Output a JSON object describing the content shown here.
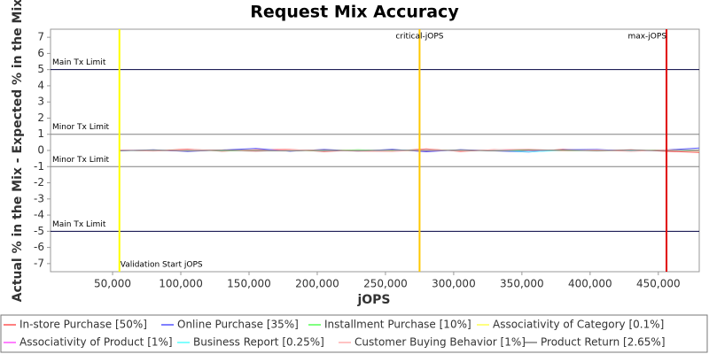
{
  "chart_data": {
    "type": "line",
    "title": "Request Mix Accuracy",
    "x_label": "jOPS",
    "y_label": "Actual % in the Mix - Expected % in the Mix",
    "x": [
      55000,
      80000,
      105000,
      130000,
      155000,
      180000,
      205000,
      230000,
      255000,
      280000,
      305000,
      330000,
      355000,
      380000,
      405000,
      430000,
      455000,
      480000
    ],
    "series": [
      {
        "name": "In-store Purchase [50%]",
        "color": "#ff5555",
        "values": [
          0.02,
          -0.03,
          0.08,
          -0.05,
          0.04,
          0.06,
          -0.07,
          0.03,
          -0.04,
          0.1,
          -0.06,
          0.05,
          -0.08,
          0.07,
          -0.02,
          0.04,
          -0.05,
          -0.12
        ]
      },
      {
        "name": "Online Purchase [35%]",
        "color": "#5555ff",
        "values": [
          -0.02,
          0.04,
          -0.06,
          0.03,
          0.12,
          -0.05,
          0.06,
          -0.04,
          0.07,
          -0.08,
          0.05,
          -0.03,
          -0.1,
          0.04,
          0.06,
          -0.04,
          0.03,
          0.15
        ]
      },
      {
        "name": "Installment Purchase [10%]",
        "color": "#55ff55",
        "values": [
          0.01,
          -0.02,
          0.03,
          -0.01,
          -0.04,
          0.02,
          -0.03,
          0.04,
          -0.02,
          0.03,
          -0.01,
          0.02,
          0.05,
          -0.03,
          0.01,
          -0.02,
          0.03,
          -0.04
        ]
      },
      {
        "name": "Associativity of Category [0.1%]",
        "color": "#ffff55",
        "values": [
          0.0,
          0.01,
          -0.01,
          0.0,
          0.02,
          -0.01,
          0.0,
          0.01,
          -0.02,
          0.0,
          0.01,
          -0.01,
          0.0,
          0.02,
          -0.01,
          0.0,
          0.01,
          0.0
        ]
      },
      {
        "name": "Associativity of Product [1%]",
        "color": "#ff55ff",
        "values": [
          0.01,
          0.0,
          -0.02,
          0.01,
          0.0,
          0.02,
          -0.01,
          0.0,
          0.01,
          -0.02,
          0.0,
          0.01,
          -0.01,
          0.0,
          0.02,
          -0.01,
          0.0,
          0.01
        ]
      },
      {
        "name": "Business Report [0.25%]",
        "color": "#55ffff",
        "values": [
          0.0,
          -0.01,
          0.01,
          0.0,
          -0.02,
          0.01,
          0.0,
          -0.01,
          0.02,
          0.0,
          -0.01,
          0.01,
          -0.08,
          0.0,
          0.01,
          -0.01,
          0.0,
          0.02
        ]
      },
      {
        "name": "Customer Buying Behavior [1%]",
        "color": "#ffafaf",
        "values": [
          0.02,
          -0.04,
          0.05,
          0.03,
          -0.06,
          0.04,
          0.02,
          -0.05,
          -0.07,
          0.06,
          -0.03,
          0.04,
          0.08,
          -0.02,
          0.03,
          -0.06,
          0.04,
          -0.03
        ]
      },
      {
        "name": "Product Return [2.65%]",
        "color": "#808080",
        "values": [
          -0.01,
          0.02,
          -0.03,
          0.02,
          -0.01,
          -0.03,
          0.02,
          -0.02,
          0.03,
          -0.01,
          0.02,
          -0.03,
          0.01,
          0.02,
          -0.02,
          0.03,
          -0.01,
          0.02
        ]
      }
    ],
    "xlim": [
      4500,
      480000
    ],
    "ylim": [
      -7.5,
      7.5
    ],
    "xticks": [
      {
        "value": 50000,
        "label": "50,000"
      },
      {
        "value": 100000,
        "label": "100,000"
      },
      {
        "value": 150000,
        "label": "150,000"
      },
      {
        "value": 200000,
        "label": "200,000"
      },
      {
        "value": 250000,
        "label": "250,000"
      },
      {
        "value": 300000,
        "label": "300,000"
      },
      {
        "value": 350000,
        "label": "350,000"
      },
      {
        "value": 400000,
        "label": "400,000"
      },
      {
        "value": 450000,
        "label": "450,000"
      }
    ],
    "yticks": [
      -7,
      -6,
      -5,
      -4,
      -3,
      -2,
      -1,
      0,
      1,
      2,
      3,
      4,
      5,
      6,
      7
    ],
    "x_markers": [
      {
        "value": 55000,
        "label": "Validation Start jOPS",
        "color": "#ffff00"
      },
      {
        "value": 275000,
        "label": "critical-jOPS",
        "color": "#ffc800"
      },
      {
        "value": 456000,
        "label": "max-jOPS",
        "color": "#e00000"
      }
    ],
    "y_markers": [
      {
        "value": 5,
        "label": "Main Tx Limit",
        "color": "#000040"
      },
      {
        "value": 1,
        "label": "Minor Tx Limit",
        "color": "#808080"
      },
      {
        "value": -1,
        "label": "Minor Tx Limit",
        "color": "#808080"
      },
      {
        "value": -5,
        "label": "Main Tx Limit",
        "color": "#000040"
      }
    ]
  }
}
